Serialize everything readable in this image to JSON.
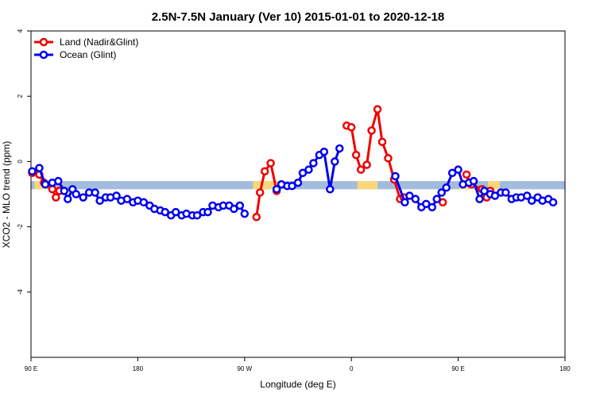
{
  "chart_data": {
    "type": "line",
    "title": "2.5N-7.5N January (Ver 10)   2015-01-01 to 2020-12-18",
    "xlabel": "Longitude (deg E)",
    "ylabel": "XCO2 - MLO trend (ppm)",
    "xlim": [
      90,
      540
    ],
    "ylim": [
      -6,
      4
    ],
    "x_ticks": [
      {
        "value": 90,
        "label": "90 E"
      },
      {
        "value": 180,
        "label": "180"
      },
      {
        "value": 270,
        "label": "90 W"
      },
      {
        "value": 360,
        "label": "0"
      },
      {
        "value": 450,
        "label": "90 E"
      },
      {
        "value": 540,
        "label": "180"
      }
    ],
    "y_ticks": [
      {
        "value": 4,
        "label": "4"
      },
      {
        "value": 2,
        "label": "2"
      },
      {
        "value": 0,
        "label": "0"
      },
      {
        "value": -2,
        "label": "-2"
      },
      {
        "value": -4,
        "label": "-4"
      }
    ],
    "legend_position": "top-left",
    "background_band": {
      "y_from": -0.85,
      "y_to": -0.6,
      "ocean_color": "#a3bcdd",
      "land_color": "#f8d77b"
    },
    "land_spans": [
      [
        93,
        103
      ],
      [
        277,
        298
      ],
      [
        365,
        382
      ],
      [
        451,
        461
      ],
      [
        475,
        485
      ]
    ],
    "series": [
      {
        "name": "Land (Nadir&Glint)",
        "color": "#ee0000",
        "points": [
          [
            91,
            -0.35
          ],
          [
            97,
            -0.4
          ],
          [
            101,
            -0.65
          ],
          [
            108,
            -0.85
          ],
          [
            111,
            -1.1
          ],
          [
            114,
            -0.9
          ],
          [
            280,
            -1.7
          ],
          [
            283,
            -0.95
          ],
          [
            287,
            -0.3
          ],
          [
            292,
            -0.05
          ],
          [
            297,
            -0.9
          ],
          [
            356,
            1.1
          ],
          [
            360,
            1.05
          ],
          [
            364,
            0.2
          ],
          [
            368,
            -0.25
          ],
          [
            373,
            -0.1
          ],
          [
            377,
            0.95
          ],
          [
            382,
            1.6
          ],
          [
            386,
            0.6
          ],
          [
            391,
            0.1
          ],
          [
            396,
            -0.55
          ],
          [
            401,
            -1.15
          ],
          [
            404,
            -1.1
          ],
          [
            437,
            -1.25
          ],
          [
            457,
            -0.4
          ],
          [
            461,
            -0.7
          ],
          [
            470,
            -0.85
          ],
          [
            474,
            -1.1
          ],
          [
            477,
            -0.9
          ]
        ]
      },
      {
        "name": "Ocean (Glint)",
        "color": "#0000ee",
        "points": [
          [
            91,
            -0.3
          ],
          [
            97,
            -0.2
          ],
          [
            102,
            -0.7
          ],
          [
            108,
            -0.65
          ],
          [
            113,
            -0.6
          ],
          [
            118,
            -0.9
          ],
          [
            121,
            -1.15
          ],
          [
            125,
            -0.85
          ],
          [
            128,
            -1.0
          ],
          [
            134,
            -1.1
          ],
          [
            139,
            -0.95
          ],
          [
            144,
            -0.95
          ],
          [
            148,
            -1.2
          ],
          [
            153,
            -1.1
          ],
          [
            157,
            -1.1
          ],
          [
            162,
            -1.05
          ],
          [
            166,
            -1.2
          ],
          [
            171,
            -1.15
          ],
          [
            176,
            -1.25
          ],
          [
            180,
            -1.2
          ],
          [
            185,
            -1.25
          ],
          [
            190,
            -1.35
          ],
          [
            194,
            -1.45
          ],
          [
            199,
            -1.5
          ],
          [
            203,
            -1.55
          ],
          [
            208,
            -1.65
          ],
          [
            212,
            -1.55
          ],
          [
            217,
            -1.65
          ],
          [
            221,
            -1.6
          ],
          [
            226,
            -1.65
          ],
          [
            230,
            -1.65
          ],
          [
            235,
            -1.55
          ],
          [
            239,
            -1.55
          ],
          [
            243,
            -1.35
          ],
          [
            248,
            -1.4
          ],
          [
            252,
            -1.35
          ],
          [
            257,
            -1.35
          ],
          [
            261,
            -1.45
          ],
          [
            266,
            -1.35
          ],
          [
            270,
            -1.6
          ],
          [
            297,
            -0.85
          ],
          [
            301,
            -0.7
          ],
          [
            306,
            -0.75
          ],
          [
            310,
            -0.75
          ],
          [
            315,
            -0.65
          ],
          [
            319,
            -0.35
          ],
          [
            324,
            -0.25
          ],
          [
            328,
            -0.05
          ],
          [
            333,
            0.2
          ],
          [
            337,
            0.3
          ],
          [
            342,
            -0.85
          ],
          [
            346,
            0.0
          ],
          [
            350,
            0.4
          ],
          [
            397,
            -0.45
          ],
          [
            405,
            -1.25
          ],
          [
            409,
            -1.05
          ],
          [
            414,
            -1.15
          ],
          [
            419,
            -1.4
          ],
          [
            423,
            -1.3
          ],
          [
            428,
            -1.4
          ],
          [
            432,
            -1.15
          ],
          [
            436,
            -0.95
          ],
          [
            440,
            -0.8
          ],
          [
            445,
            -0.35
          ],
          [
            450,
            -0.25
          ],
          [
            454,
            -0.7
          ],
          [
            459,
            -0.65
          ],
          [
            463,
            -0.6
          ],
          [
            468,
            -1.15
          ],
          [
            472,
            -0.9
          ],
          [
            477,
            -1.0
          ],
          [
            481,
            -1.05
          ],
          [
            486,
            -0.95
          ],
          [
            490,
            -0.95
          ],
          [
            495,
            -1.15
          ],
          [
            499,
            -1.1
          ],
          [
            503,
            -1.1
          ],
          [
            508,
            -1.05
          ],
          [
            512,
            -1.2
          ],
          [
            517,
            -1.1
          ],
          [
            521,
            -1.2
          ],
          [
            526,
            -1.15
          ],
          [
            530,
            -1.25
          ]
        ]
      }
    ]
  }
}
